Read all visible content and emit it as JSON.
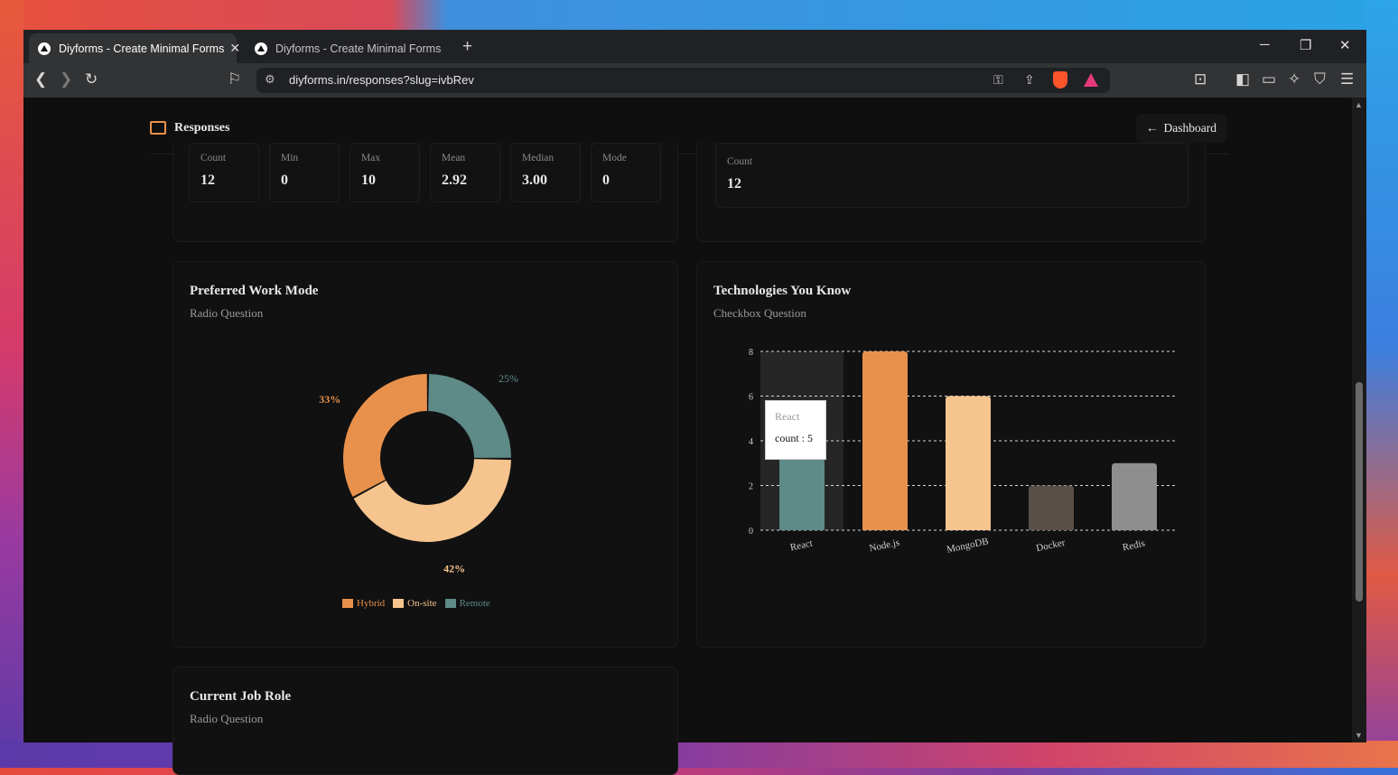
{
  "browser": {
    "tabs": [
      {
        "title": "Diyforms - Create Minimal Forms",
        "active": true
      },
      {
        "title": "Diyforms - Create Minimal Forms",
        "active": false
      }
    ],
    "url": "diyforms.in/responses?slug=ivbRev"
  },
  "header": {
    "title": "Responses",
    "dashboard_button": "Dashboard"
  },
  "stats_left": [
    {
      "label": "Count",
      "value": "12"
    },
    {
      "label": "Min",
      "value": "0"
    },
    {
      "label": "Max",
      "value": "10"
    },
    {
      "label": "Mean",
      "value": "2.92"
    },
    {
      "label": "Median",
      "value": "3.00"
    },
    {
      "label": "Mode",
      "value": "0"
    }
  ],
  "stats_right": [
    {
      "label": "Count",
      "value": "12"
    }
  ],
  "cards": {
    "work_mode": {
      "title": "Preferred Work Mode",
      "subtitle": "Radio Question"
    },
    "technologies": {
      "title": "Technologies You Know",
      "subtitle": "Checkbox Question"
    },
    "job_role": {
      "title": "Current Job Role",
      "subtitle": "Radio Question"
    }
  },
  "tooltip": {
    "category": "React",
    "value_text": "count : 5"
  },
  "colors": {
    "hybrid": "#e8914c",
    "onsite": "#f6c48e",
    "remote": "#5e8a87",
    "docker": "#5a4f48",
    "redis": "#8e8e8e",
    "accent": "#e8914c"
  },
  "chart_data": [
    {
      "type": "pie",
      "labels": [
        "Hybrid",
        "On-site",
        "Remote"
      ],
      "values": [
        33,
        42,
        25
      ],
      "value_labels": [
        "33%",
        "42%",
        "25%"
      ],
      "colors": [
        "#e8914c",
        "#f6c48e",
        "#5e8a87"
      ],
      "donut": true,
      "legend": "bottom"
    },
    {
      "type": "bar",
      "categories": [
        "React",
        "Node.js",
        "MongoDB",
        "Docker",
        "Redis"
      ],
      "values": [
        5,
        8,
        6,
        2,
        3
      ],
      "colors": [
        "#5e8a87",
        "#e8914c",
        "#f6c48e",
        "#5a4f48",
        "#8e8e8e"
      ],
      "yticks": [
        "0",
        "2",
        "4",
        "6",
        "8"
      ],
      "ylim": [
        0,
        8
      ],
      "grid": true
    }
  ]
}
